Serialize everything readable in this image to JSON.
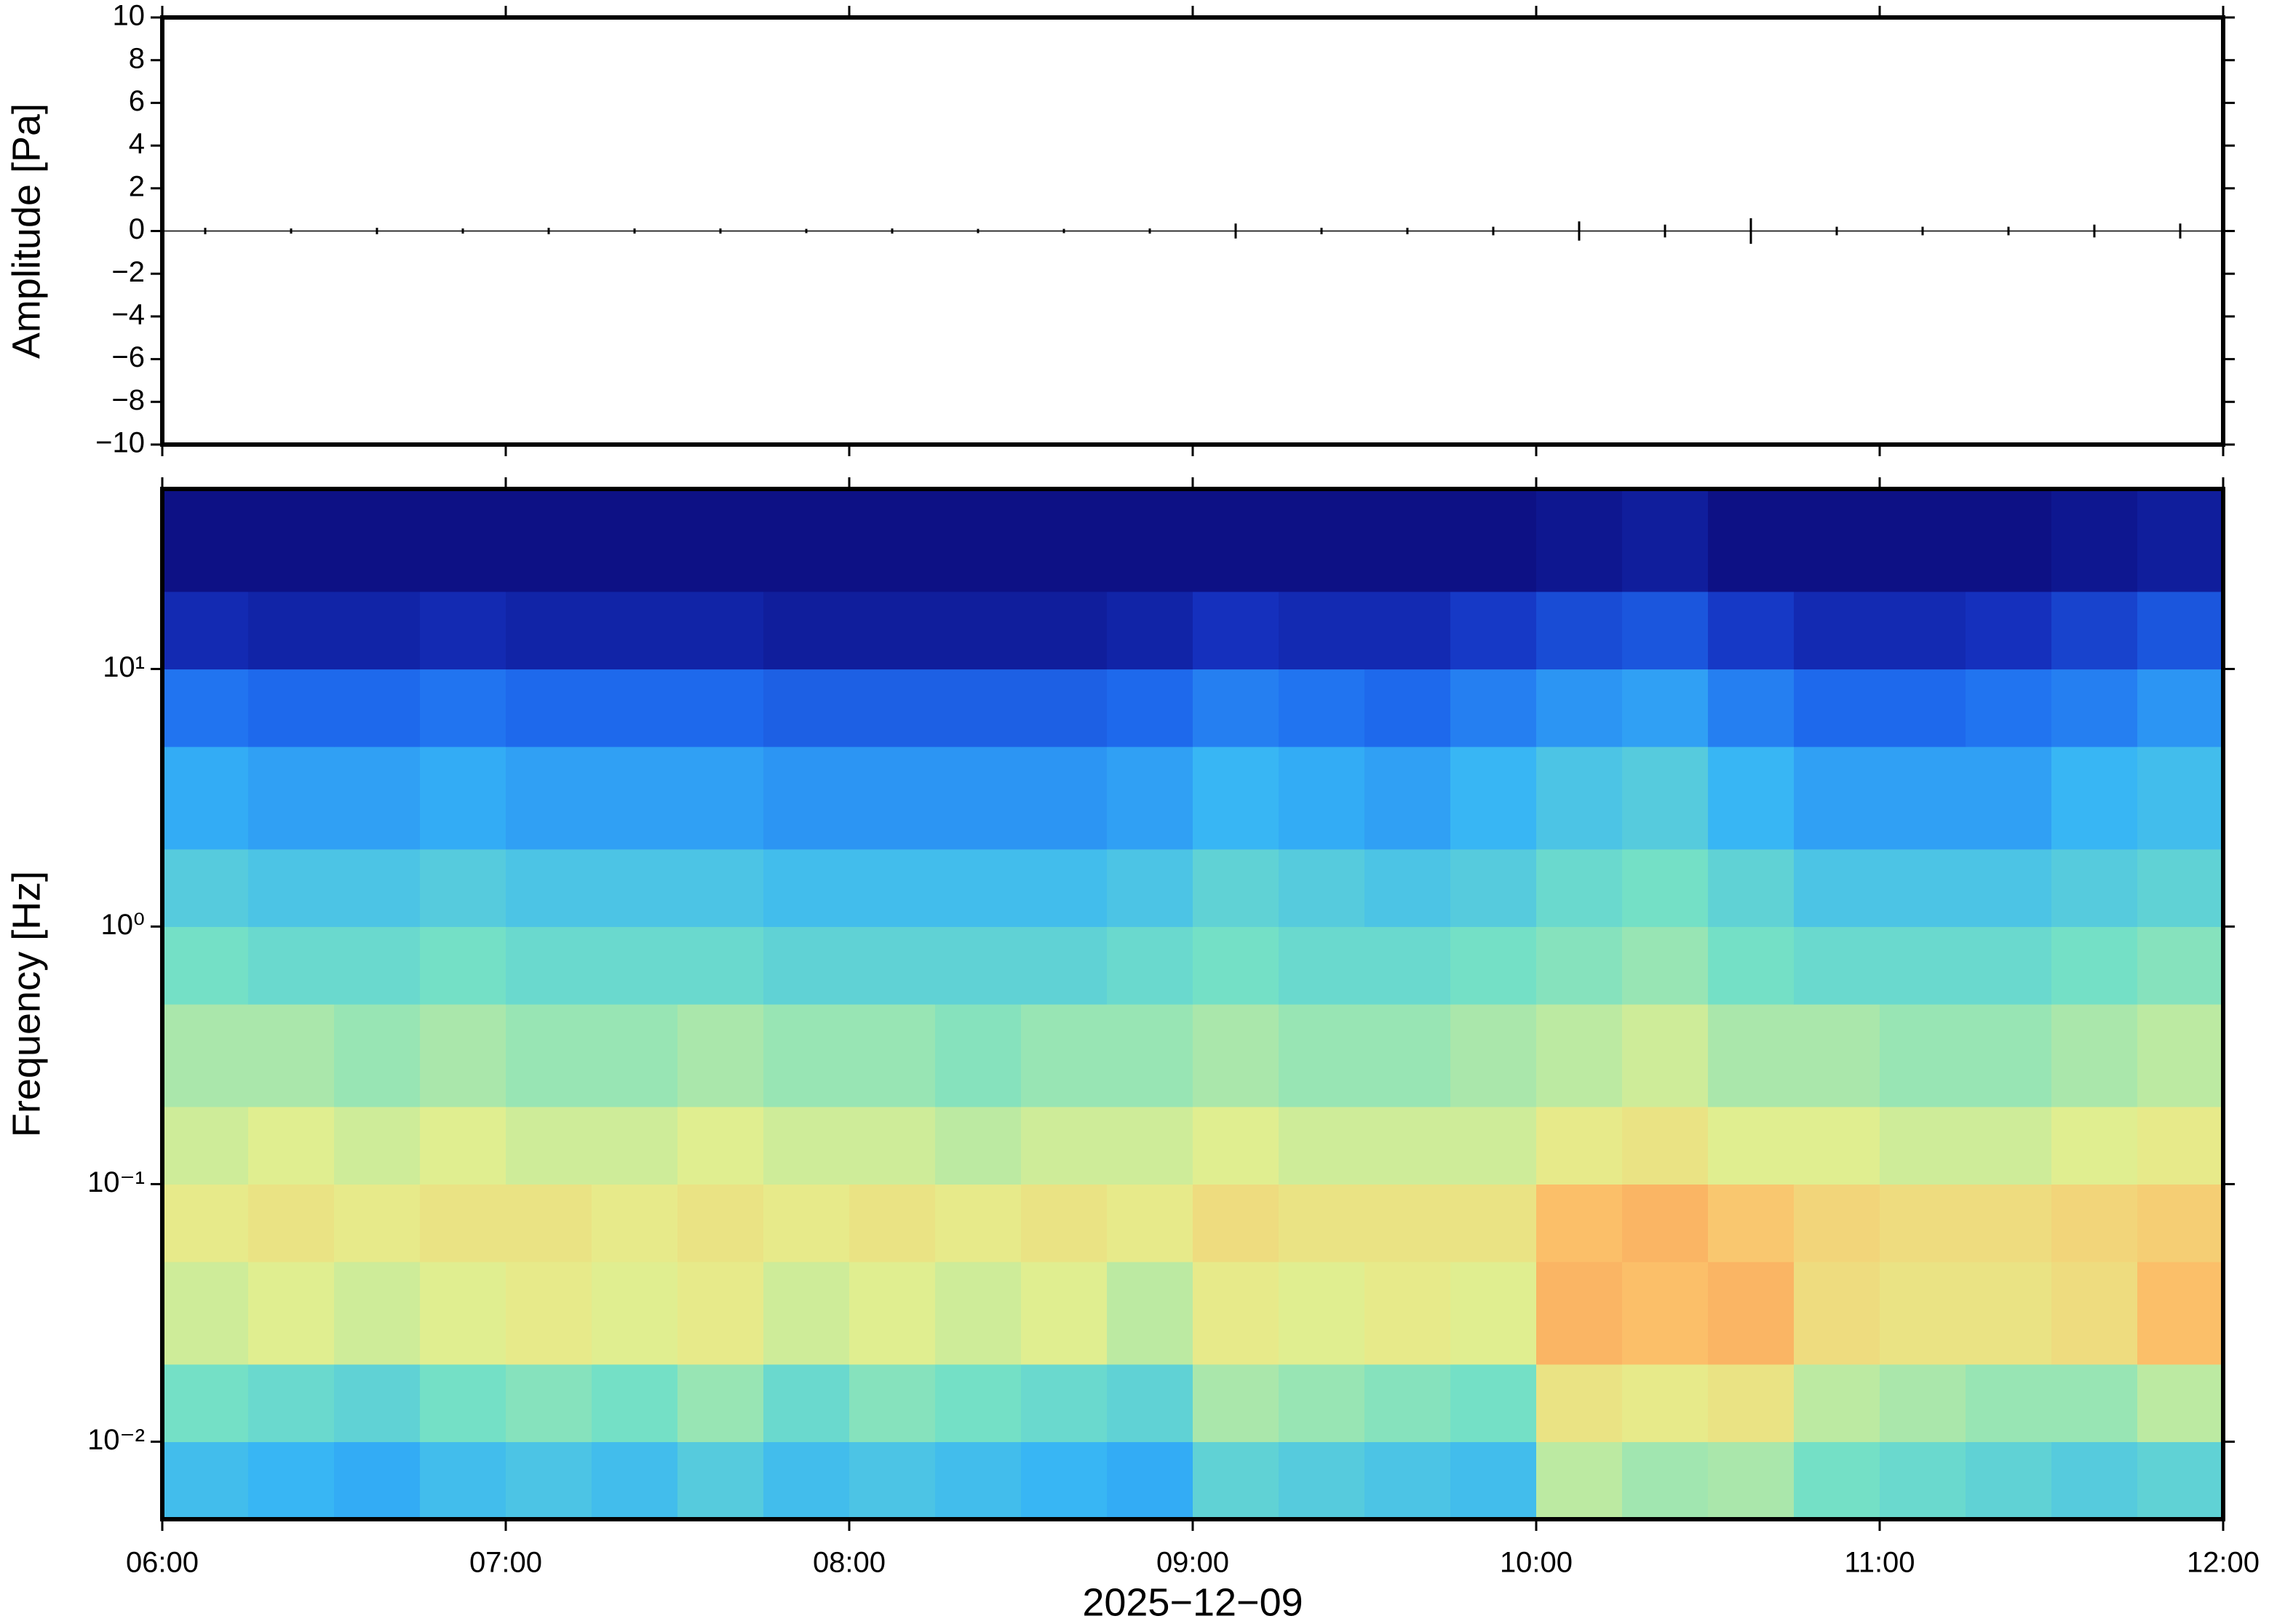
{
  "chart_data": [
    {
      "type": "waveform",
      "ylabel": "Amplitude [Pa]",
      "color": "#000000",
      "xlim": [
        6,
        12
      ],
      "xticks": [
        6,
        7,
        8,
        9,
        10,
        11,
        12
      ],
      "ylim": [
        -10,
        10
      ],
      "yticks": [
        {
          "value": -10,
          "label": "−10"
        },
        {
          "value": -8,
          "label": "−8"
        },
        {
          "value": -6,
          "label": "−6"
        },
        {
          "value": -4,
          "label": "−4"
        },
        {
          "value": -2,
          "label": "−2"
        },
        0,
        2,
        4,
        6,
        8,
        10
      ],
      "x": [
        6.125,
        6.375,
        6.625,
        6.875,
        7.125,
        7.375,
        7.625,
        7.875,
        8.125,
        8.375,
        8.625,
        8.875,
        9.125,
        9.375,
        9.625,
        9.875,
        10.125,
        10.375,
        10.625,
        10.875,
        11.125,
        11.375,
        11.625,
        11.875
      ],
      "values": [
        0.15,
        0.12,
        0.15,
        0.12,
        0.15,
        0.12,
        0.12,
        0.1,
        0.12,
        0.1,
        0.1,
        0.12,
        0.35,
        0.15,
        0.15,
        0.2,
        0.45,
        0.3,
        0.6,
        0.2,
        0.2,
        0.2,
        0.3,
        0.35
      ]
    },
    {
      "type": "heatmap",
      "ylabel": "Frequency [Hz]",
      "xlabel": "2025−12−09",
      "ylog": true,
      "xlim": [
        6,
        12
      ],
      "xticks": [
        {
          "value": 6,
          "label": "06:00"
        },
        {
          "value": 7,
          "label": "07:00"
        },
        {
          "value": 8,
          "label": "08:00"
        },
        {
          "value": 9,
          "label": "09:00"
        },
        {
          "value": 10,
          "label": "10:00"
        },
        {
          "value": 11,
          "label": "11:00"
        },
        {
          "value": 12,
          "label": "12:00"
        }
      ],
      "ylim": [
        0.005,
        50
      ],
      "yticks": [
        {
          "value": 0.01,
          "label": "10⁻²"
        },
        {
          "value": 0.1,
          "label": "10⁻¹"
        },
        {
          "value": 1,
          "label": "10⁰"
        },
        {
          "value": 10,
          "label": "10¹"
        }
      ],
      "zlim": [
        0,
        100
      ],
      "colormap": [
        "#0b0b7a",
        "#1532c0",
        "#1f6ef0",
        "#36b4f6",
        "#74e0c6",
        "#e4ef8e",
        "#fbc46c",
        "#f5874c",
        "#d42f27"
      ],
      "x_bins": [
        6,
        6.25,
        6.5,
        6.75,
        7,
        7.25,
        7.5,
        7.75,
        8,
        8.25,
        8.5,
        8.75,
        9,
        9.25,
        9.5,
        9.75,
        10,
        10.25,
        10.5,
        10.75,
        11,
        11.25,
        11.5,
        11.75,
        12
      ],
      "y_bins": [
        0.005,
        0.01,
        0.02,
        0.05,
        0.1,
        0.2,
        0.5,
        1,
        2,
        5,
        10,
        20,
        50
      ],
      "z": [
        [
          40,
          38,
          36,
          40,
          42,
          40,
          44,
          40,
          42,
          40,
          38,
          36,
          46,
          44,
          42,
          40,
          58,
          55,
          56,
          50,
          48,
          46,
          44,
          46
        ],
        [
          50,
          48,
          46,
          50,
          52,
          50,
          54,
          48,
          52,
          50,
          48,
          46,
          56,
          54,
          52,
          50,
          66,
          64,
          66,
          58,
          56,
          54,
          54,
          58
        ],
        [
          60,
          62,
          60,
          62,
          64,
          62,
          64,
          60,
          62,
          60,
          62,
          58,
          64,
          62,
          64,
          62,
          78,
          76,
          78,
          68,
          66,
          66,
          68,
          76
        ],
        [
          64,
          66,
          64,
          66,
          66,
          64,
          66,
          64,
          66,
          64,
          66,
          64,
          68,
          66,
          66,
          66,
          76,
          78,
          74,
          70,
          68,
          68,
          70,
          72
        ],
        [
          60,
          62,
          60,
          62,
          60,
          60,
          62,
          60,
          60,
          58,
          60,
          60,
          62,
          60,
          60,
          60,
          64,
          66,
          62,
          62,
          60,
          60,
          62,
          64
        ],
        [
          56,
          56,
          54,
          56,
          54,
          54,
          56,
          54,
          54,
          52,
          54,
          54,
          56,
          54,
          54,
          56,
          58,
          60,
          56,
          56,
          54,
          54,
          56,
          58
        ],
        [
          50,
          48,
          48,
          50,
          48,
          48,
          48,
          46,
          46,
          46,
          46,
          48,
          50,
          48,
          48,
          50,
          52,
          54,
          50,
          48,
          48,
          48,
          50,
          52
        ],
        [
          44,
          42,
          42,
          44,
          42,
          42,
          42,
          40,
          40,
          40,
          40,
          42,
          46,
          44,
          42,
          44,
          48,
          50,
          46,
          42,
          42,
          42,
          44,
          46
        ],
        [
          36,
          34,
          34,
          36,
          34,
          34,
          34,
          32,
          32,
          32,
          32,
          34,
          38,
          36,
          34,
          38,
          42,
          44,
          38,
          34,
          34,
          34,
          38,
          40
        ],
        [
          26,
          24,
          24,
          26,
          24,
          24,
          24,
          22,
          22,
          22,
          22,
          24,
          28,
          26,
          24,
          28,
          32,
          34,
          28,
          24,
          24,
          26,
          28,
          32
        ],
        [
          10,
          8,
          8,
          10,
          8,
          8,
          8,
          6,
          6,
          6,
          6,
          8,
          12,
          10,
          10,
          14,
          18,
          20,
          14,
          10,
          10,
          12,
          16,
          20
        ],
        [
          2,
          2,
          2,
          2,
          2,
          2,
          2,
          2,
          2,
          2,
          2,
          2,
          2,
          2,
          2,
          2,
          4,
          6,
          2,
          2,
          2,
          2,
          4,
          6
        ]
      ]
    }
  ]
}
